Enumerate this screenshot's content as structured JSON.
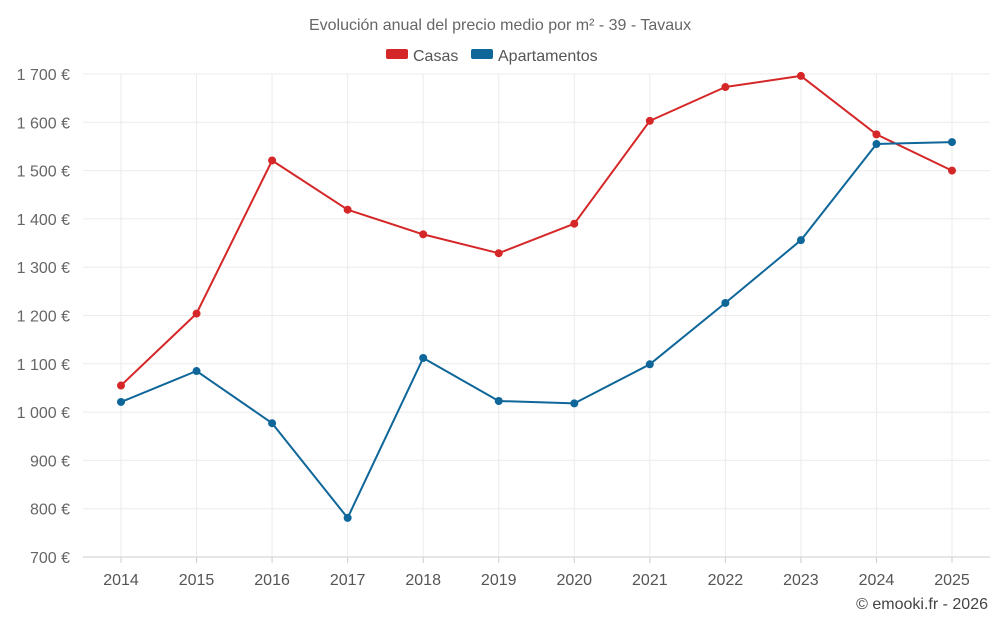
{
  "chart_data": {
    "type": "line",
    "title": "Evolución anual del precio medio por m² - 39 - Tavaux",
    "categories": [
      "2014",
      "2015",
      "2016",
      "2017",
      "2018",
      "2019",
      "2020",
      "2021",
      "2022",
      "2023",
      "2024",
      "2025"
    ],
    "series": [
      {
        "name": "Casas",
        "color": "#d62728",
        "values": [
          1055,
          1204,
          1521,
          1419,
          1368,
          1329,
          1390,
          1603,
          1673,
          1696,
          1575,
          1500
        ]
      },
      {
        "name": "Apartamentos",
        "color": "#0e6699",
        "values": [
          1021,
          1085,
          977,
          781,
          1112,
          1023,
          1018,
          1099,
          1226,
          1356,
          1555,
          1559
        ]
      }
    ],
    "ylim": [
      700,
      1700
    ],
    "yticks": [
      700,
      800,
      900,
      1000,
      1100,
      1200,
      1300,
      1400,
      1500,
      1600,
      1700
    ],
    "ytick_labels": [
      "700 €",
      "800 €",
      "900 €",
      "1 000 €",
      "1 100 €",
      "1 200 €",
      "1 300 €",
      "1 400 €",
      "1 500 €",
      "1 600 €",
      "1 700 €"
    ],
    "xlabel": "",
    "ylabel": "",
    "grid": true,
    "legend_position": "top-center"
  },
  "credit": "© emooki.fr - 2026"
}
